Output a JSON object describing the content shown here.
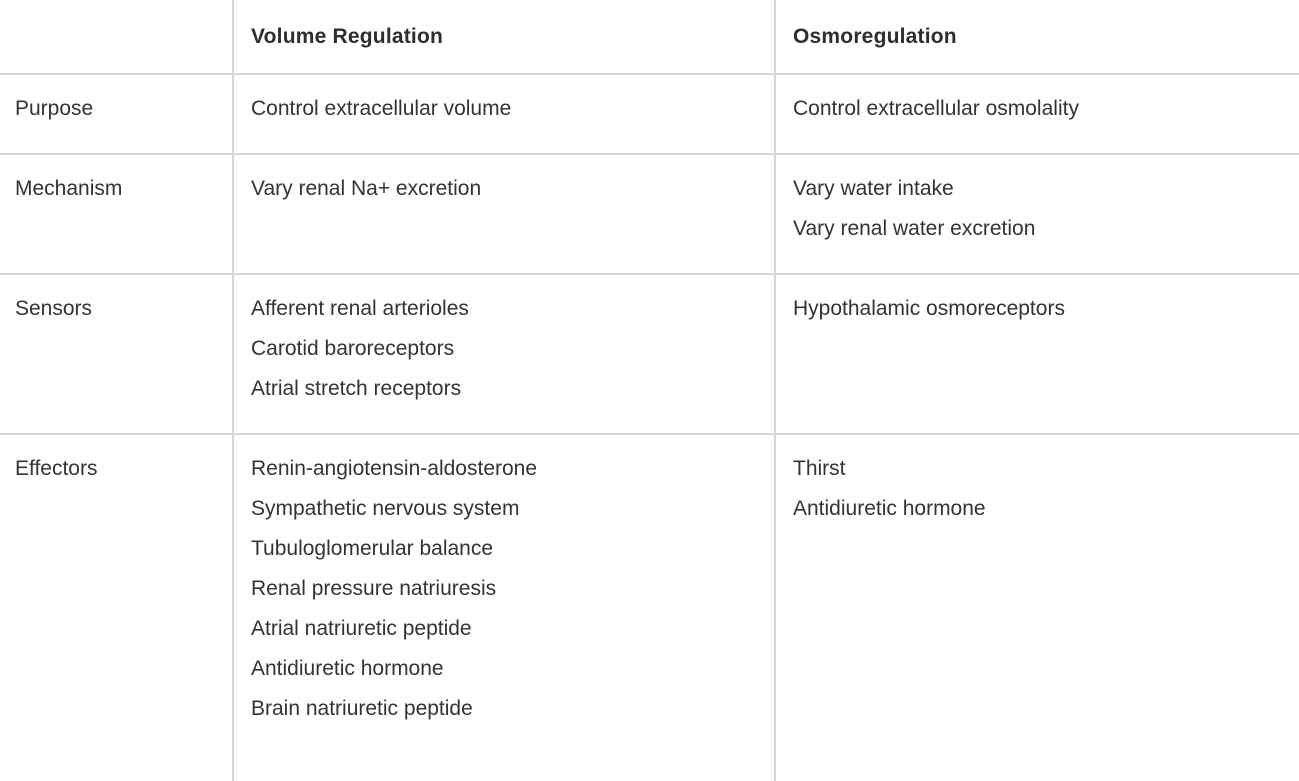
{
  "table": {
    "headers": [
      "",
      "Volume Regulation",
      "Osmoregulation"
    ],
    "rows": [
      {
        "label": "Purpose",
        "volume": [
          "Control extracellular volume"
        ],
        "osmo": [
          "Control extracellular osmolality"
        ]
      },
      {
        "label": "Mechanism",
        "volume": [
          "Vary renal Na+ excretion"
        ],
        "osmo": [
          "Vary water intake",
          "Vary renal water excretion"
        ]
      },
      {
        "label": "Sensors",
        "volume": [
          "Afferent renal arterioles",
          "Carotid baroreceptors",
          "Atrial stretch receptors"
        ],
        "osmo": [
          "Hypothalamic osmoreceptors"
        ]
      },
      {
        "label": "Effectors",
        "volume": [
          "Renin-angiotensin-aldosterone",
          "Sympathetic nervous system",
          "Tubuloglomerular balance",
          "Renal pressure natriuresis",
          "Atrial natriuretic peptide",
          "Antidiuretic hormone",
          "Brain natriuretic peptide"
        ],
        "osmo": [
          "Thirst",
          "Antidiuretic hormone"
        ]
      }
    ]
  }
}
